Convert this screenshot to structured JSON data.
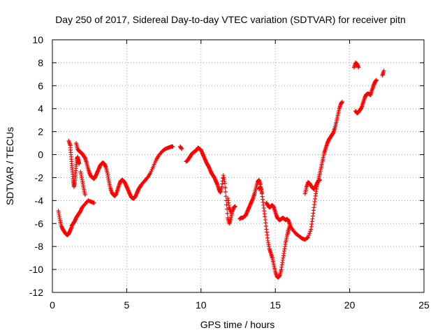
{
  "chart_data": {
    "type": "scatter",
    "title": "Day 250 of 2017, Sidereal Day-to-day VTEC variation (SDTVAR) for receiver pitn",
    "xlabel": "GPS time / hours",
    "ylabel": "SDTVAR / TECUs",
    "xlim": [
      0,
      25
    ],
    "ylim": [
      -12,
      10
    ],
    "xticks": [
      0,
      5,
      10,
      15,
      20,
      25
    ],
    "yticks": [
      -12,
      -10,
      -8,
      -6,
      -4,
      -2,
      0,
      2,
      4,
      6,
      8,
      10
    ],
    "grid": true,
    "marker": "+",
    "color": "#ff0000",
    "segments": [
      {
        "x": [
          0.4,
          0.5,
          0.6,
          0.7,
          0.8,
          0.9,
          1.0,
          1.1,
          1.2,
          1.3
        ],
        "y": [
          -4.9,
          -5.6,
          -6.2,
          -6.5,
          -6.7,
          -6.9,
          -7.0,
          -6.9,
          -6.6,
          -6.3
        ]
      },
      {
        "x": [
          1.1,
          1.2,
          1.25,
          1.3,
          1.35,
          1.4,
          1.45,
          1.5,
          1.55,
          1.6,
          1.65,
          1.7,
          1.75,
          1.8
        ],
        "y": [
          1.2,
          0.8,
          0.0,
          -0.8,
          -1.5,
          -2.3,
          -2.8,
          -2.4,
          -1.8,
          -1.0,
          -0.4,
          -0.2,
          -0.5,
          -0.8
        ]
      },
      {
        "x": [
          1.3,
          1.4,
          1.5,
          1.6,
          1.7,
          1.8,
          1.9,
          2.0,
          2.2,
          2.4,
          2.6,
          2.8
        ],
        "y": [
          -6.2,
          -6.0,
          -5.8,
          -5.5,
          -5.3,
          -5.1,
          -4.9,
          -4.6,
          -4.3,
          -4.0,
          -4.1,
          -4.2
        ]
      },
      {
        "x": [
          1.6,
          1.7,
          1.8,
          1.9,
          2.0,
          2.1,
          2.2,
          2.3,
          2.4,
          2.5,
          2.6,
          2.7,
          2.8,
          2.9,
          3.0,
          3.1,
          3.2,
          3.3,
          3.4,
          3.5,
          3.6,
          3.7,
          3.8,
          3.9,
          4.0,
          4.1,
          4.2,
          4.3,
          4.4,
          4.5,
          4.6,
          4.7,
          4.8,
          4.9,
          5.0,
          5.1,
          5.2,
          5.3,
          5.4,
          5.5,
          5.6,
          5.7,
          5.8,
          5.9,
          6.0,
          6.2,
          6.4,
          6.6,
          6.8,
          7.0,
          7.2,
          7.4,
          7.6,
          7.8,
          8.0,
          8.1
        ],
        "y": [
          1.0,
          0.5,
          0.3,
          0.2,
          0.1,
          -0.1,
          -0.3,
          -0.7,
          -1.2,
          -1.6,
          -1.9,
          -2.0,
          -2.1,
          -1.9,
          -1.6,
          -1.3,
          -1.0,
          -0.8,
          -0.7,
          -0.8,
          -1.1,
          -1.6,
          -2.3,
          -2.9,
          -3.3,
          -3.5,
          -3.6,
          -3.4,
          -3.0,
          -2.6,
          -2.3,
          -2.2,
          -2.3,
          -2.5,
          -2.8,
          -3.1,
          -3.4,
          -3.7,
          -3.8,
          -3.8,
          -3.6,
          -3.3,
          -3.0,
          -2.8,
          -2.6,
          -2.3,
          -2.0,
          -1.6,
          -1.0,
          -0.4,
          0.0,
          0.3,
          0.5,
          0.6,
          0.7,
          0.7
        ]
      },
      {
        "x": [
          1.9,
          2.0,
          2.1,
          2.2
        ],
        "y": [
          -1.5,
          -2.2,
          -2.9,
          -3.5
        ]
      },
      {
        "x": [
          8.6,
          8.7
        ],
        "y": [
          0.7,
          0.5
        ]
      },
      {
        "x": [
          9.0,
          9.1,
          9.2,
          9.3,
          9.4,
          9.5,
          9.6,
          9.7,
          9.8,
          9.9,
          10.0,
          10.1,
          10.2,
          10.3,
          10.4,
          10.5,
          10.6,
          10.7,
          10.8,
          10.9,
          11.0,
          11.1,
          11.2,
          11.3,
          11.4,
          11.5,
          11.6,
          11.7,
          11.8,
          11.9,
          12.0,
          12.1,
          12.2,
          12.3
        ],
        "y": [
          -0.6,
          -0.5,
          -0.3,
          -0.1,
          0.1,
          0.2,
          0.3,
          0.4,
          0.6,
          0.5,
          0.4,
          0.1,
          -0.2,
          -0.5,
          -0.8,
          -1.0,
          -1.3,
          -1.6,
          -1.8,
          -2.0,
          -2.3,
          -2.6,
          -3.0,
          -3.3,
          -2.8,
          -1.8,
          -2.5,
          -4.0,
          -5.5,
          -6.0,
          -5.6,
          -5.0,
          -4.6,
          -4.5
        ]
      },
      {
        "x": [
          11.8,
          11.9,
          12.0
        ],
        "y": [
          -3.8,
          -4.6,
          -5.0
        ]
      },
      {
        "x": [
          12.6,
          12.7,
          12.8,
          12.9,
          13.0,
          13.1,
          13.2,
          13.3,
          13.4,
          13.5,
          13.6,
          13.7,
          13.8,
          13.9,
          14.0,
          14.1,
          14.2,
          14.3,
          14.4,
          14.5,
          14.6,
          14.7,
          14.8,
          14.9,
          15.0,
          15.1,
          15.2,
          15.3,
          15.4,
          15.5,
          15.6,
          15.7,
          15.8,
          15.9,
          16.0
        ],
        "y": [
          -5.6,
          -5.5,
          -5.5,
          -5.4,
          -5.3,
          -5.0,
          -4.7,
          -4.4,
          -4.1,
          -3.8,
          -3.4,
          -2.9,
          -2.4,
          -2.2,
          -2.6,
          -3.4,
          -4.4,
          -5.4,
          -6.5,
          -7.5,
          -8.2,
          -8.6,
          -9.0,
          -9.6,
          -10.2,
          -10.6,
          -10.7,
          -10.5,
          -10.0,
          -9.2,
          -8.4,
          -7.6,
          -7.0,
          -6.5,
          -6.1
        ]
      },
      {
        "x": [
          13.9,
          14.0,
          14.1
        ],
        "y": [
          -3.0,
          -2.8,
          -3.3
        ]
      },
      {
        "x": [
          14.4,
          14.5,
          14.6,
          14.7,
          14.8,
          14.9,
          15.0,
          15.1,
          15.2,
          15.3,
          15.4,
          15.5,
          15.6,
          15.7,
          15.8,
          15.9,
          16.0,
          16.2,
          16.4,
          16.6,
          16.8,
          17.0,
          17.2,
          17.4,
          17.5,
          17.6,
          17.7,
          17.8,
          17.9,
          18.0,
          18.1,
          18.2,
          18.3,
          18.4,
          18.5,
          18.6,
          18.7,
          18.8,
          18.9,
          19.0,
          19.1,
          19.2,
          19.3,
          19.4,
          19.5
        ],
        "y": [
          -4.2,
          -4.4,
          -4.6,
          -4.5,
          -4.4,
          -4.6,
          -5.0,
          -5.4,
          -5.6,
          -5.7,
          -5.6,
          -5.5,
          -5.6,
          -5.7,
          -5.6,
          -5.8,
          -6.2,
          -6.6,
          -6.9,
          -7.1,
          -7.3,
          -7.4,
          -7.2,
          -6.5,
          -5.6,
          -4.6,
          -3.6,
          -2.8,
          -2.2,
          -1.6,
          -1.0,
          -0.4,
          0.2,
          0.6,
          1.0,
          1.3,
          1.5,
          1.7,
          1.9,
          2.3,
          2.8,
          3.4,
          4.0,
          4.4,
          4.6
        ]
      },
      {
        "x": [
          17.0,
          17.1,
          17.2,
          17.3,
          17.4,
          17.5,
          17.6,
          17.7,
          17.8,
          17.9,
          18.0
        ],
        "y": [
          -3.4,
          -2.8,
          -2.4,
          -2.5,
          -2.7,
          -2.9,
          -3.0,
          -2.8,
          -2.5,
          -2.3,
          -2.2
        ]
      },
      {
        "x": [
          20.3,
          20.4,
          20.5,
          20.6
        ],
        "y": [
          7.6,
          8.0,
          7.9,
          7.6
        ]
      },
      {
        "x": [
          20.4,
          20.5,
          20.6,
          20.7,
          20.8,
          20.9,
          21.0,
          21.1,
          21.2,
          21.3,
          21.4,
          21.5,
          21.6,
          21.7,
          21.8
        ],
        "y": [
          3.8,
          3.6,
          3.7,
          3.9,
          4.1,
          4.5,
          4.9,
          5.2,
          5.3,
          5.3,
          5.2,
          5.6,
          6.0,
          6.3,
          6.5
        ]
      },
      {
        "x": [
          22.2,
          22.3
        ],
        "y": [
          6.9,
          7.3
        ]
      }
    ]
  }
}
